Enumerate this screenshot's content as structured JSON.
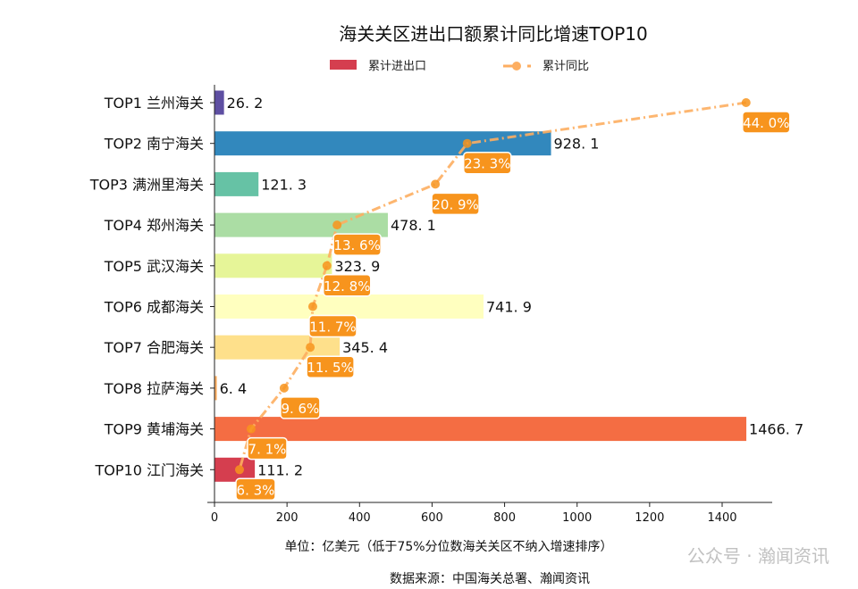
{
  "chart_data": {
    "type": "bar",
    "orientation": "horizontal",
    "title": "海关关区进出口额累计同比增速TOP10",
    "xlabel": "单位：亿美元（低于75%分位数海关关区不纳入增速排序）",
    "source": "数据来源：中国海关总署、瀚闻资讯",
    "watermark": "公众号 · 瀚闻资讯",
    "xlim": [
      0,
      1540
    ],
    "xticks": [
      0,
      200,
      400,
      600,
      800,
      1000,
      1200,
      1400
    ],
    "grid": false,
    "legend_placement": "top-center",
    "categories": [
      "TOP1 兰州海关",
      "TOP2 南宁海关",
      "TOP3 满洲里海关",
      "TOP4 郑州海关",
      "TOP5 武汉海关",
      "TOP6 成都海关",
      "TOP7 合肥海关",
      "TOP8 拉萨海关",
      "TOP9 黄埔海关",
      "TOP10 江门海关"
    ],
    "series": [
      {
        "name": "累计进出口",
        "type": "bar",
        "values": [
          26.2,
          928.1,
          121.3,
          478.1,
          323.9,
          741.9,
          345.4,
          6.4,
          1466.7,
          111.2
        ],
        "colors": [
          "#5e4fa2",
          "#3288bd",
          "#66c2a5",
          "#abdda4",
          "#e6f598",
          "#ffffbf",
          "#fee08b",
          "#fdae61",
          "#f46d43",
          "#d53e4f"
        ]
      },
      {
        "name": "累计同比",
        "type": "line",
        "color": "#fdae61",
        "label_color": "#f7941d",
        "values": [
          44.0,
          23.3,
          20.9,
          13.6,
          12.8,
          11.7,
          11.5,
          9.6,
          7.1,
          6.3
        ],
        "labels": [
          "44.0%",
          "23.3%",
          "20.9%",
          "13.6%",
          "12.8%",
          "11.7%",
          "11.5%",
          "9.6%",
          "7.1%",
          "6.3%"
        ],
        "x_positions": [
          1466,
          697,
          609,
          338,
          310,
          271,
          264,
          192,
          101,
          69
        ]
      }
    ]
  }
}
